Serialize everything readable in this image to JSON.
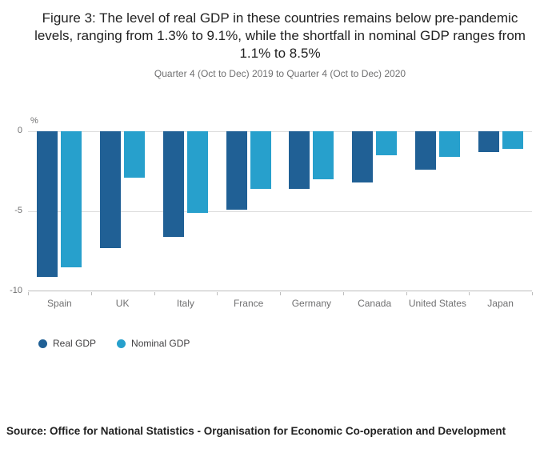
{
  "chart_data": {
    "type": "bar",
    "title": "Figure 3: The level of real GDP in these countries remains below pre-pandemic levels, ranging from 1.3% to 9.1%, while the shortfall in nominal GDP ranges from 1.1% to 8.5%",
    "subtitle": "Quarter 4 (Oct to Dec) 2019 to Quarter 4 (Oct to Dec) 2020",
    "ylabel": "%",
    "xlabel": "",
    "ylim": [
      -10,
      0
    ],
    "yticks": [
      0,
      -5,
      -10
    ],
    "grid": true,
    "legend_position": "bottom-left",
    "categories": [
      "Spain",
      "UK",
      "Italy",
      "France",
      "Germany",
      "Canada",
      "United States",
      "Japan"
    ],
    "series": [
      {
        "name": "Real GDP",
        "color": "#206095",
        "values": [
          -9.1,
          -7.3,
          -6.6,
          -4.9,
          -3.6,
          -3.2,
          -2.4,
          -1.3
        ]
      },
      {
        "name": "Nominal GDP",
        "color": "#27a0cc",
        "values": [
          -8.5,
          -2.9,
          -5.1,
          -3.6,
          -3.0,
          -1.5,
          -1.6,
          -1.1
        ]
      }
    ]
  },
  "source": "Source: Office for National Statistics - Organisation for Economic Co-operation and Development"
}
